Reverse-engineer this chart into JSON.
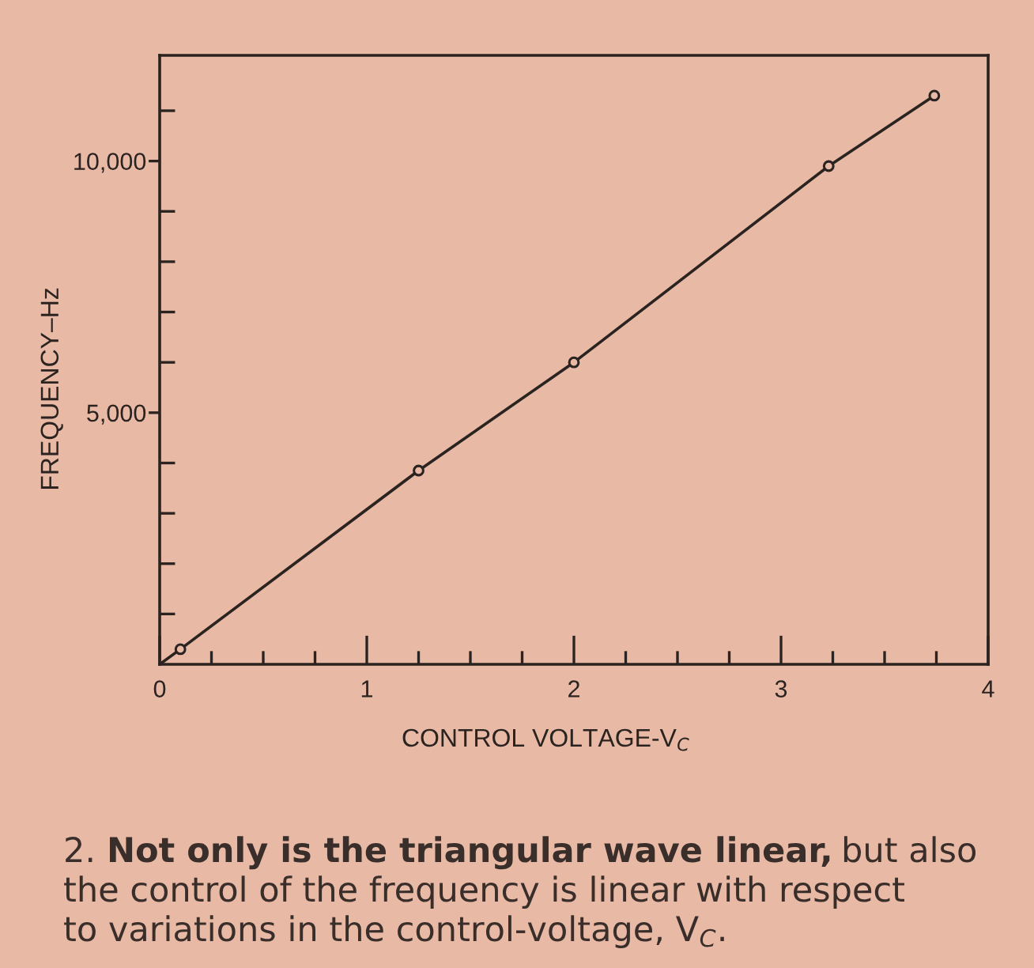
{
  "chart_data": {
    "type": "line",
    "xlabel": "CONTROL VOLTAGE-V$_{C}$",
    "ylabel": "FREQUENCY–Hz",
    "xlim": [
      0,
      4
    ],
    "ylim": [
      0,
      12100
    ],
    "xticks": [
      0,
      {
        "value": 0.25,
        "label": null
      },
      {
        "value": 0.5,
        "label": null
      },
      {
        "value": 0.75,
        "label": null
      },
      1,
      {
        "value": 1.25,
        "label": null
      },
      {
        "value": 1.5,
        "label": null
      },
      {
        "value": 1.75,
        "label": null
      },
      2,
      {
        "value": 2.25,
        "label": null
      },
      {
        "value": 2.5,
        "label": null
      },
      {
        "value": 2.75,
        "label": null
      },
      3,
      {
        "value": 3.25,
        "label": null
      },
      {
        "value": 3.5,
        "label": null
      },
      {
        "value": 3.75,
        "label": null
      },
      4
    ],
    "yticks": [
      {
        "value": 1000,
        "label": null
      },
      {
        "value": 2000,
        "label": null
      },
      {
        "value": 3000,
        "label": null
      },
      {
        "value": 4000,
        "label": null
      },
      {
        "value": 5000,
        "label": "5,000"
      },
      {
        "value": 6000,
        "label": null
      },
      {
        "value": 7000,
        "label": null
      },
      {
        "value": 8000,
        "label": null
      },
      {
        "value": 9000,
        "label": null
      },
      {
        "value": 10000,
        "label": "10,000"
      },
      {
        "value": 11000,
        "label": null
      }
    ],
    "series": [
      {
        "color": "#2b2320",
        "line_style": "solid",
        "x": [
          0,
          0.1,
          1.25,
          2,
          3.23,
          3.74
        ],
        "values": [
          0,
          300,
          3850,
          6000,
          9900,
          11300
        ]
      },
      {
        "type": "scatter",
        "color": "#2b2320",
        "marker": "circle",
        "x": [
          0.1,
          1.25,
          2,
          3.23,
          3.74
        ],
        "values": [
          300,
          3850,
          6000,
          9900,
          11300
        ]
      }
    ],
    "grid": false,
    "annotations": [
      "2.",
      "Not only is the triangular wave linear,",
      "but also",
      "the control of the frequency is linear with respect",
      "to variations in the control-voltage, V$_{C}$."
    ]
  }
}
